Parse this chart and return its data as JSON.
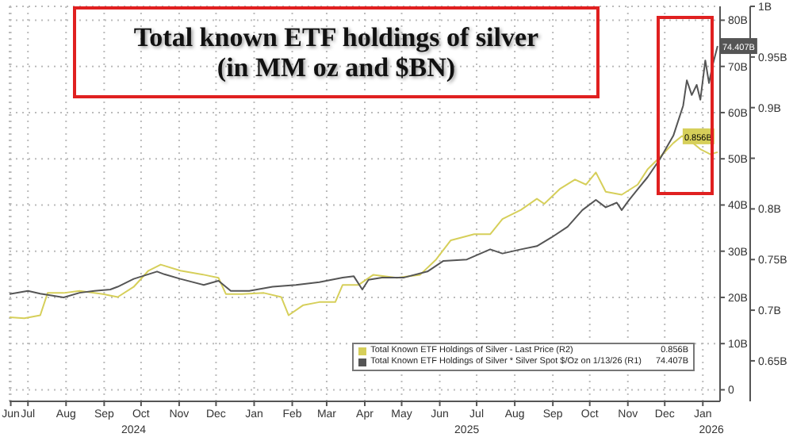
{
  "chart_data": {
    "type": "line",
    "title": "Total known ETF holdings of silver\n(in MM oz and $BN)",
    "xlim": [
      "2024-06-16",
      "2026-01-15"
    ],
    "xticks": [
      {
        "value": "2024-06-17",
        "label": "Jun"
      },
      {
        "value": "2024-07-01",
        "label": "Jul"
      },
      {
        "value": "2024-08-01",
        "label": "Aug"
      },
      {
        "value": "2024-09-01",
        "label": "Sep"
      },
      {
        "value": "2024-10-01",
        "label": "Oct"
      },
      {
        "value": "2024-11-01",
        "label": "Nov"
      },
      {
        "value": "2024-12-01",
        "label": "Dec"
      },
      {
        "value": "2025-01-01",
        "label": "Jan"
      },
      {
        "value": "2025-02-01",
        "label": "Feb"
      },
      {
        "value": "2025-03-01",
        "label": "Mar"
      },
      {
        "value": "2025-04-01",
        "label": "Apr"
      },
      {
        "value": "2025-05-01",
        "label": "May"
      },
      {
        "value": "2025-06-01",
        "label": "Jun"
      },
      {
        "value": "2025-07-01",
        "label": "Jul"
      },
      {
        "value": "2025-08-01",
        "label": "Aug"
      },
      {
        "value": "2025-09-01",
        "label": "Sep"
      },
      {
        "value": "2025-10-01",
        "label": "Oct"
      },
      {
        "value": "2025-11-01",
        "label": "Nov"
      },
      {
        "value": "2025-12-01",
        "label": "Dec"
      },
      {
        "value": "2026-01-01",
        "label": "Jan"
      }
    ],
    "x2lim": [
      "2024-06-16",
      "2026-01-15"
    ],
    "x2ticks": [
      {
        "value": "2024-09-25",
        "label": "2024"
      },
      {
        "value": "2025-06-23",
        "label": "2025"
      },
      {
        "value": "2026-01-08",
        "label": "2026"
      }
    ],
    "ylim": [
      -2.5,
      83
    ],
    "yticks": [
      {
        "value": 0,
        "label": "0"
      },
      {
        "value": 10,
        "label": "10B"
      },
      {
        "value": 20,
        "label": "20B"
      },
      {
        "value": 30,
        "label": "30B"
      },
      {
        "value": 40,
        "label": "40B"
      },
      {
        "value": 50,
        "label": "50B"
      },
      {
        "value": 60,
        "label": "60B"
      },
      {
        "value": 70,
        "label": "70B"
      },
      {
        "value": 80,
        "label": "80B"
      }
    ],
    "y2lim": [
      0.61,
      1.0
    ],
    "y2ticks": [
      {
        "value": 0.65,
        "label": "0.65B"
      },
      {
        "value": 0.7,
        "label": "0.7B"
      },
      {
        "value": 0.75,
        "label": "0.75B"
      },
      {
        "value": 0.8,
        "label": "0.8B"
      },
      {
        "value": 0.85,
        "label": null
      },
      {
        "value": 0.9,
        "label": "0.9B"
      },
      {
        "value": 0.95,
        "label": "0.95B"
      },
      {
        "value": 1.0,
        "label": "1B"
      }
    ],
    "grid": true,
    "legend": "bottom right",
    "marker": "none",
    "line_style": "solid",
    "series": [
      {
        "name": "Total Known ETF Holdings of Silver - Last Price (R2)",
        "color": "#d6cf5a",
        "axis": "y2",
        "x": [
          "2024-06-16",
          "2024-06-28",
          "2024-07-11",
          "2024-07-17",
          "2024-07-30",
          "2024-08-12",
          "2024-08-31",
          "2024-09-12",
          "2024-09-25",
          "2024-10-07",
          "2024-10-17",
          "2024-11-02",
          "2024-11-21",
          "2024-12-03",
          "2024-12-09",
          "2024-12-22",
          "2025-01-09",
          "2025-01-23",
          "2025-01-29",
          "2025-02-10",
          "2025-02-23",
          "2025-03-08",
          "2025-03-14",
          "2025-03-27",
          "2025-04-08",
          "2025-04-27",
          "2025-05-16",
          "2025-05-29",
          "2025-06-10",
          "2025-06-29",
          "2025-07-12",
          "2025-07-22",
          "2025-08-06",
          "2025-08-19",
          "2025-08-25",
          "2025-09-07",
          "2025-09-19",
          "2025-09-28",
          "2025-10-06",
          "2025-10-14",
          "2025-10-27",
          "2025-11-09",
          "2025-11-17",
          "2025-11-27",
          "2025-12-08",
          "2025-12-15",
          "2025-12-23",
          "2025-12-30",
          "2026-01-07",
          "2026-01-13"
        ],
        "values": [
          0.693,
          0.692,
          0.695,
          0.717,
          0.717,
          0.719,
          0.716,
          0.713,
          0.723,
          0.739,
          0.745,
          0.739,
          0.735,
          0.732,
          0.716,
          0.716,
          0.717,
          0.713,
          0.695,
          0.705,
          0.708,
          0.708,
          0.725,
          0.725,
          0.735,
          0.732,
          0.735,
          0.75,
          0.769,
          0.775,
          0.775,
          0.79,
          0.799,
          0.81,
          0.805,
          0.82,
          0.829,
          0.824,
          0.836,
          0.817,
          0.814,
          0.824,
          0.839,
          0.851,
          0.865,
          0.872,
          0.866,
          0.859,
          0.854,
          0.856
        ],
        "value_labels": [
          null,
          null,
          null,
          null,
          null,
          null,
          null,
          null,
          null,
          null,
          null,
          null,
          null,
          null,
          null,
          null,
          null,
          null,
          null,
          null,
          null,
          null,
          null,
          null,
          null,
          null,
          null,
          null,
          null,
          null,
          null,
          null,
          null,
          null,
          null,
          null,
          null,
          null,
          null,
          null,
          null,
          null,
          null,
          null,
          null,
          null,
          null,
          null,
          null,
          "0.856B"
        ]
      },
      {
        "name": "Total Known ETF Holdings of Silver * Silver Spot $/Oz on 1/13/26 (R1)",
        "color": "#555555",
        "axis": "y",
        "x": [
          "2024-06-16",
          "2024-07-01",
          "2024-07-11",
          "2024-07-30",
          "2024-08-12",
          "2024-08-24",
          "2024-09-06",
          "2024-09-12",
          "2024-09-25",
          "2024-10-14",
          "2024-10-20",
          "2024-11-02",
          "2024-11-21",
          "2024-12-03",
          "2024-12-13",
          "2024-12-28",
          "2025-01-16",
          "2025-02-04",
          "2025-02-23",
          "2025-03-14",
          "2025-03-23",
          "2025-03-30",
          "2025-04-04",
          "2025-04-15",
          "2025-05-03",
          "2025-05-22",
          "2025-06-04",
          "2025-06-23",
          "2025-07-12",
          "2025-07-22",
          "2025-08-06",
          "2025-08-19",
          "2025-08-31",
          "2025-09-13",
          "2025-09-25",
          "2025-10-06",
          "2025-10-14",
          "2025-10-23",
          "2025-10-27",
          "2025-11-02",
          "2025-11-09",
          "2025-11-17",
          "2025-11-27",
          "2025-12-08",
          "2025-12-16",
          "2025-12-19",
          "2025-12-23",
          "2025-12-27",
          "2025-12-30",
          "2026-01-03",
          "2026-01-06",
          "2026-01-09",
          "2026-01-13"
        ],
        "values": [
          20.7,
          21.4,
          20.8,
          20,
          21,
          21.4,
          21.7,
          22.3,
          24,
          25.6,
          25,
          24,
          22.7,
          23.6,
          21.4,
          21.4,
          22.3,
          22.7,
          23.3,
          24.3,
          24.6,
          21.7,
          23.8,
          24.3,
          24.3,
          25.6,
          27.9,
          28.2,
          30.4,
          29.5,
          30.4,
          31.1,
          33,
          35.3,
          38.9,
          41.1,
          39.5,
          40.5,
          38.9,
          41.1,
          43.4,
          46,
          49.9,
          55,
          61.5,
          67,
          63.8,
          66,
          62.8,
          71.3,
          66.4,
          70.3,
          74.407
        ],
        "value_labels": [
          null,
          null,
          null,
          null,
          null,
          null,
          null,
          null,
          null,
          null,
          null,
          null,
          null,
          null,
          null,
          null,
          null,
          null,
          null,
          null,
          null,
          null,
          null,
          null,
          null,
          null,
          null,
          null,
          null,
          null,
          null,
          null,
          null,
          null,
          null,
          null,
          null,
          null,
          null,
          null,
          null,
          null,
          null,
          null,
          null,
          null,
          null,
          null,
          null,
          null,
          null,
          null,
          "74.407B"
        ]
      }
    ]
  }
}
